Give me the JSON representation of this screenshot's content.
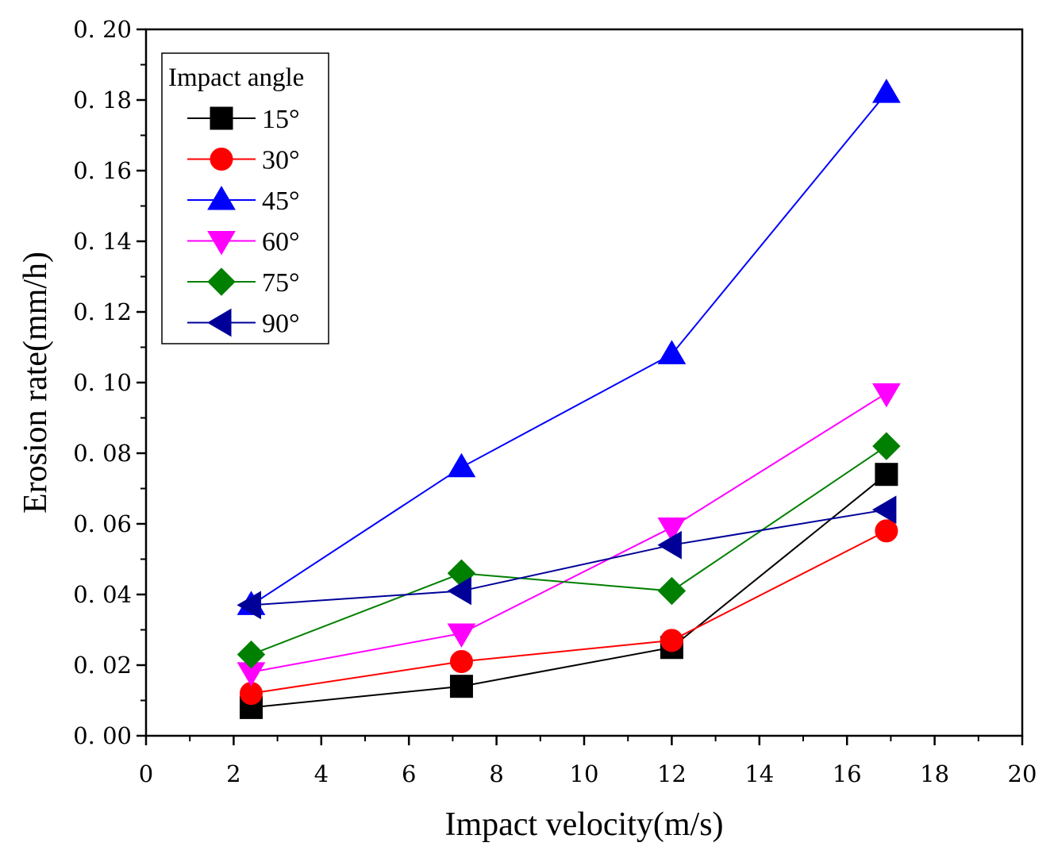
{
  "chart_data": {
    "type": "line",
    "xlabel": "Impact velocity(m/s)",
    "ylabel": "Erosion rate(mm/h)",
    "xlim": [
      0,
      20
    ],
    "ylim": [
      0,
      0.2
    ],
    "x_ticks": [
      "0",
      "2",
      "4",
      "6",
      "8",
      "10",
      "12",
      "14",
      "16",
      "18",
      "20"
    ],
    "y_ticks": [
      "0. 00",
      "0. 02",
      "0. 04",
      "0. 06",
      "0. 08",
      "0. 10",
      "0. 12",
      "0. 14",
      "0. 16",
      "0. 18",
      "0. 20"
    ],
    "x": [
      2.4,
      7.2,
      12.0,
      16.9
    ],
    "legend_title": "Impact angle",
    "legend_position": "top-left",
    "series": [
      {
        "name": "15°",
        "color": "#000000",
        "marker": "square",
        "values": [
          0.008,
          0.014,
          0.025,
          0.074
        ]
      },
      {
        "name": "30°",
        "color": "#ff0000",
        "marker": "circle",
        "values": [
          0.012,
          0.021,
          0.027,
          0.058
        ]
      },
      {
        "name": "45°",
        "color": "#0000ff",
        "marker": "triangle-up",
        "values": [
          0.037,
          0.076,
          0.108,
          0.182
        ]
      },
      {
        "name": "60°",
        "color": "#ff00ff",
        "marker": "triangle-down",
        "values": [
          0.018,
          0.029,
          0.059,
          0.097
        ]
      },
      {
        "name": "75°",
        "color": "#008000",
        "marker": "diamond",
        "values": [
          0.023,
          0.046,
          0.041,
          0.082
        ]
      },
      {
        "name": "90°",
        "color": "#000099",
        "marker": "triangle-left",
        "values": [
          0.037,
          0.041,
          0.054,
          0.064
        ]
      }
    ]
  }
}
